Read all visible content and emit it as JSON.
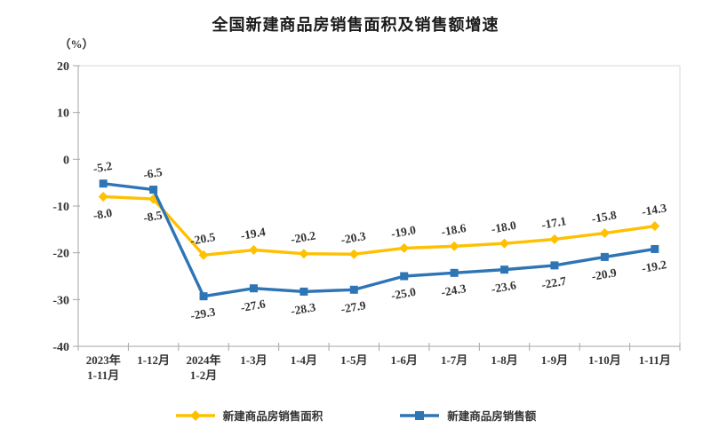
{
  "chart_data": {
    "type": "line",
    "title": "全国新建商品房销售面积及销售额增速",
    "unit_label": "（%）",
    "categories": [
      [
        "2023年",
        "1-11月"
      ],
      [
        "1-12月"
      ],
      [
        "2024年",
        "1-2月"
      ],
      [
        "1-3月"
      ],
      [
        "1-4月"
      ],
      [
        "1-5月"
      ],
      [
        "1-6月"
      ],
      [
        "1-7月"
      ],
      [
        "1-8月"
      ],
      [
        "1-9月"
      ],
      [
        "1-10月"
      ],
      [
        "1-11月"
      ]
    ],
    "series": [
      {
        "name": "新建商品房销售面积",
        "color": "#FFC000",
        "marker": "diamond",
        "values": [
          -8.0,
          -8.5,
          -20.5,
          -19.4,
          -20.2,
          -20.3,
          -19.0,
          -18.6,
          -18.0,
          -17.1,
          -15.8,
          -14.3
        ],
        "labels": [
          "-8.0",
          "-8.5",
          "-20.5",
          "-19.4",
          "-20.2",
          "-20.3",
          "-19.0",
          "-18.6",
          "-18.0",
          "-17.1",
          "-15.8",
          "-14.3"
        ],
        "label_side": [
          "below",
          "below",
          "above",
          "above",
          "above",
          "above",
          "above",
          "above",
          "above",
          "above",
          "above",
          "above"
        ]
      },
      {
        "name": "新建商品房销售额",
        "color": "#2E75B6",
        "marker": "square",
        "values": [
          -5.2,
          -6.5,
          -29.3,
          -27.6,
          -28.3,
          -27.9,
          -25.0,
          -24.3,
          -23.6,
          -22.7,
          -20.9,
          -19.2
        ],
        "labels": [
          "-5.2",
          "-6.5",
          "-29.3",
          "-27.6",
          "-28.3",
          "-27.9",
          "-25.0",
          "-24.3",
          "-23.6",
          "-22.7",
          "-20.9",
          "-19.2"
        ],
        "label_side": [
          "above",
          "above",
          "below",
          "below",
          "below",
          "below",
          "below",
          "below",
          "below",
          "below",
          "below",
          "below"
        ]
      }
    ],
    "y_axis": {
      "min": -40,
      "max": 20,
      "step": 10,
      "ticks": [
        20,
        10,
        0,
        -10,
        -20,
        -30,
        -40
      ]
    },
    "grid": false,
    "legend_position": "bottom",
    "colors": {
      "axis": "#a6a6a6",
      "plot_border": "#d9d9d9",
      "tick_label": "#333333",
      "data_label": "#333333",
      "title": "#1a1a1a"
    }
  }
}
